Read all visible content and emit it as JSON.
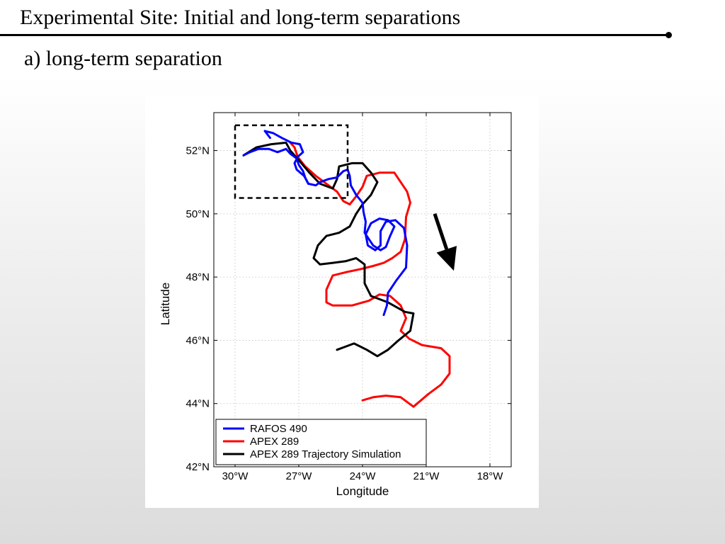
{
  "slide": {
    "title": "Experimental Site: Initial and long-term separations",
    "subtitle": "a) long-term separation"
  },
  "chart_data": {
    "type": "line",
    "title": "",
    "xlabel": "Longitude",
    "ylabel": "Latitude",
    "xlim": [
      -31,
      -17
    ],
    "ylim": [
      42,
      53.2
    ],
    "grid": true,
    "x_ticks": [
      {
        "value": -30,
        "label": "30°W"
      },
      {
        "value": -27,
        "label": "27°W"
      },
      {
        "value": -24,
        "label": "24°W"
      },
      {
        "value": -21,
        "label": "21°W"
      },
      {
        "value": -18,
        "label": "18°W"
      }
    ],
    "y_ticks": [
      {
        "value": 42,
        "label": "42°N"
      },
      {
        "value": 44,
        "label": "44°N"
      },
      {
        "value": 46,
        "label": "46°N"
      },
      {
        "value": 48,
        "label": "48°N"
      },
      {
        "value": 50,
        "label": "50°N"
      },
      {
        "value": 52,
        "label": "52°N"
      }
    ],
    "legend_position": "bottom-left",
    "series": [
      {
        "name": "RAFOS 490",
        "color": "#0000ff",
        "points": [
          [
            -29.6,
            51.85
          ],
          [
            -29.3,
            51.95
          ],
          [
            -28.9,
            52.05
          ],
          [
            -28.4,
            52.05
          ],
          [
            -28.0,
            51.95
          ],
          [
            -27.6,
            52.05
          ],
          [
            -27.4,
            51.9
          ],
          [
            -27.1,
            51.75
          ],
          [
            -27.0,
            51.55
          ],
          [
            -26.8,
            51.35
          ],
          [
            -26.7,
            51.15
          ],
          [
            -26.55,
            50.95
          ],
          [
            -26.2,
            50.9
          ],
          [
            -26.0,
            51.0
          ],
          [
            -25.6,
            51.1
          ],
          [
            -25.2,
            51.15
          ],
          [
            -24.9,
            51.35
          ],
          [
            -24.7,
            51.4
          ],
          [
            -24.6,
            51.2
          ],
          [
            -24.55,
            50.9
          ],
          [
            -24.3,
            50.6
          ],
          [
            -24.0,
            50.35
          ],
          [
            -23.95,
            50.05
          ],
          [
            -23.85,
            49.75
          ],
          [
            -23.9,
            49.4
          ],
          [
            -23.7,
            49.2
          ],
          [
            -23.5,
            49.0
          ],
          [
            -23.15,
            48.85
          ],
          [
            -22.9,
            48.95
          ],
          [
            -22.7,
            49.3
          ],
          [
            -22.5,
            49.6
          ],
          [
            -22.8,
            49.8
          ],
          [
            -23.2,
            49.85
          ],
          [
            -23.6,
            49.7
          ],
          [
            -23.85,
            49.35
          ],
          [
            -23.75,
            49.0
          ],
          [
            -23.4,
            48.85
          ],
          [
            -23.15,
            49.0
          ],
          [
            -23.15,
            49.45
          ],
          [
            -22.9,
            49.75
          ],
          [
            -22.45,
            49.8
          ],
          [
            -22.05,
            49.55
          ],
          [
            -21.9,
            49.0
          ],
          [
            -21.95,
            48.3
          ],
          [
            -22.4,
            47.9
          ],
          [
            -22.8,
            47.5
          ],
          [
            -22.85,
            47.1
          ],
          [
            -23.0,
            46.8
          ]
        ],
        "branches": [
          [
            [
              -26.55,
              50.95
            ],
            [
              -26.75,
              51.2
            ],
            [
              -27.1,
              51.4
            ],
            [
              -27.2,
              51.6
            ],
            [
              -27.05,
              51.8
            ],
            [
              -26.8,
              51.95
            ],
            [
              -26.95,
              52.2
            ],
            [
              -27.35,
              52.25
            ],
            [
              -27.8,
              52.4
            ],
            [
              -28.2,
              52.55
            ],
            [
              -28.6,
              52.62
            ],
            [
              -28.35,
              52.4
            ]
          ]
        ]
      },
      {
        "name": "APEX 289",
        "color": "#ff0000",
        "points": [
          [
            -27.4,
            52.25
          ],
          [
            -27.2,
            52.1
          ],
          [
            -27.05,
            51.8
          ],
          [
            -26.7,
            51.5
          ],
          [
            -26.2,
            51.2
          ],
          [
            -25.7,
            50.95
          ],
          [
            -25.2,
            50.7
          ],
          [
            -24.9,
            50.4
          ],
          [
            -24.6,
            50.3
          ],
          [
            -24.3,
            50.55
          ],
          [
            -24.0,
            50.85
          ],
          [
            -23.8,
            51.2
          ],
          [
            -23.2,
            51.3
          ],
          [
            -22.5,
            51.3
          ],
          [
            -21.9,
            50.7
          ],
          [
            -21.75,
            50.35
          ],
          [
            -21.95,
            49.9
          ],
          [
            -22.0,
            49.2
          ],
          [
            -22.2,
            48.8
          ],
          [
            -22.6,
            48.6
          ],
          [
            -23.0,
            48.45
          ],
          [
            -23.5,
            48.35
          ],
          [
            -24.1,
            48.25
          ],
          [
            -24.8,
            48.15
          ],
          [
            -25.4,
            48.05
          ],
          [
            -25.7,
            47.6
          ],
          [
            -25.7,
            47.2
          ],
          [
            -25.4,
            47.1
          ],
          [
            -24.5,
            47.1
          ],
          [
            -23.7,
            47.25
          ],
          [
            -23.2,
            47.45
          ],
          [
            -22.7,
            47.4
          ],
          [
            -22.2,
            47.1
          ],
          [
            -21.95,
            46.7
          ],
          [
            -22.2,
            46.3
          ],
          [
            -21.8,
            46.05
          ],
          [
            -21.2,
            45.85
          ],
          [
            -20.3,
            45.75
          ],
          [
            -19.9,
            45.5
          ],
          [
            -19.9,
            44.95
          ],
          [
            -20.3,
            44.6
          ],
          [
            -20.9,
            44.3
          ],
          [
            -21.6,
            43.9
          ],
          [
            -22.2,
            44.2
          ],
          [
            -22.9,
            44.25
          ],
          [
            -23.5,
            44.2
          ],
          [
            -24.0,
            44.1
          ]
        ]
      },
      {
        "name": "APEX 289 Trajectory Simulation",
        "color": "#000000",
        "points": [
          [
            -29.6,
            51.85
          ],
          [
            -29.0,
            52.1
          ],
          [
            -28.3,
            52.2
          ],
          [
            -27.6,
            52.25
          ],
          [
            -27.4,
            52.0
          ],
          [
            -27.0,
            51.7
          ],
          [
            -26.5,
            51.3
          ],
          [
            -26.0,
            50.95
          ],
          [
            -25.4,
            50.8
          ],
          [
            -25.2,
            51.1
          ],
          [
            -25.1,
            51.5
          ],
          [
            -24.5,
            51.6
          ],
          [
            -24.0,
            51.6
          ],
          [
            -23.6,
            51.3
          ],
          [
            -23.3,
            51.0
          ],
          [
            -23.6,
            50.6
          ],
          [
            -24.0,
            50.3
          ],
          [
            -24.3,
            50.0
          ],
          [
            -24.6,
            49.6
          ],
          [
            -25.1,
            49.4
          ],
          [
            -25.7,
            49.3
          ],
          [
            -26.1,
            49.0
          ],
          [
            -26.3,
            48.6
          ],
          [
            -26.0,
            48.4
          ],
          [
            -25.4,
            48.45
          ],
          [
            -24.8,
            48.5
          ],
          [
            -24.3,
            48.6
          ],
          [
            -23.9,
            48.4
          ],
          [
            -23.9,
            47.8
          ],
          [
            -23.6,
            47.4
          ],
          [
            -22.8,
            47.2
          ],
          [
            -22.0,
            46.9
          ],
          [
            -21.6,
            46.85
          ],
          [
            -21.75,
            46.3
          ],
          [
            -22.3,
            46.0
          ],
          [
            -22.8,
            45.7
          ],
          [
            -23.3,
            45.5
          ],
          [
            -23.8,
            45.7
          ],
          [
            -24.4,
            45.9
          ],
          [
            -24.8,
            45.8
          ],
          [
            -25.2,
            45.7
          ]
        ]
      }
    ],
    "box": {
      "lon": [
        -30.0,
        -24.7
      ],
      "lat": [
        50.5,
        52.8
      ]
    },
    "arrow": {
      "from": [
        -20.6,
        50.0
      ],
      "to": [
        -19.7,
        48.2
      ]
    }
  }
}
